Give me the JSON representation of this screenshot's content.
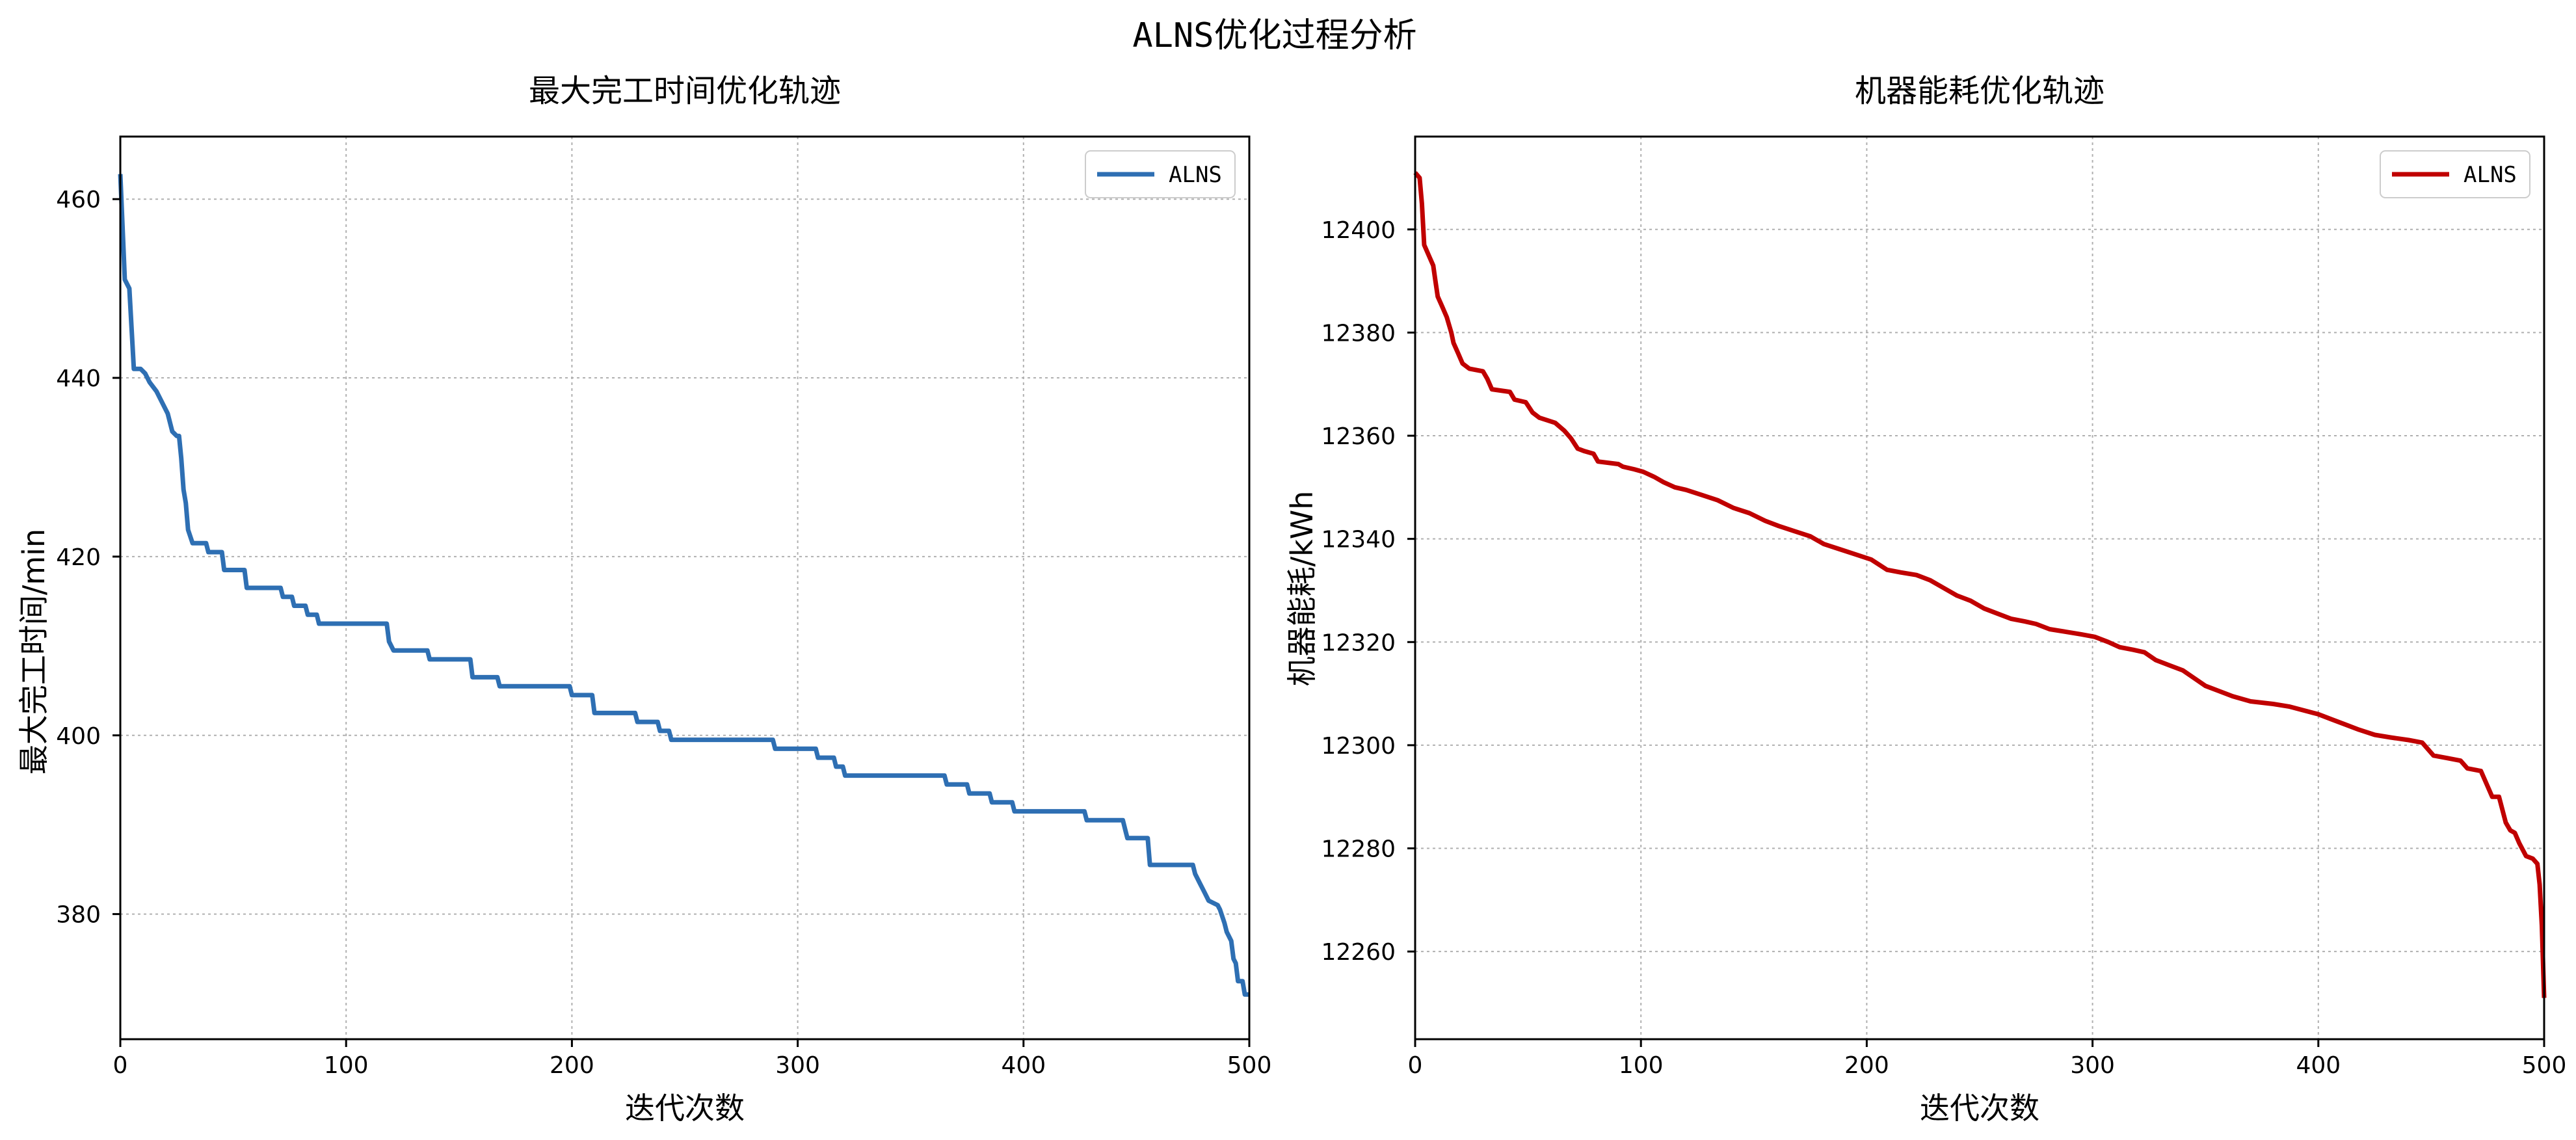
{
  "figure": {
    "title": "ALNS优化过程分析"
  },
  "chart_data": [
    {
      "type": "line",
      "title": "最大完工时间优化轨迹",
      "xlabel": "迭代次数",
      "ylabel": "最大完工时间/min",
      "xlim": [
        0,
        500
      ],
      "ylim": [
        366,
        467
      ],
      "xticks": [
        0,
        100,
        200,
        300,
        400,
        500
      ],
      "yticks": [
        380,
        400,
        420,
        440,
        460
      ],
      "grid": true,
      "legend_position": "top-right",
      "series": [
        {
          "name": "ALNS",
          "color": "#2e6fb3",
          "points": [
            [
              0,
              462.8
            ],
            [
              2,
              451
            ],
            [
              4,
              450
            ],
            [
              6,
              441
            ],
            [
              9,
              441
            ],
            [
              11,
              440.5
            ],
            [
              13,
              439.5
            ],
            [
              16,
              438.5
            ],
            [
              19,
              437
            ],
            [
              21,
              436
            ],
            [
              23,
              434
            ],
            [
              25,
              433.5
            ],
            [
              26,
              433.5
            ],
            [
              27,
              431
            ],
            [
              28,
              427.5
            ],
            [
              29,
              426
            ],
            [
              30,
              423
            ],
            [
              32,
              421.5
            ],
            [
              38,
              421.5
            ],
            [
              39,
              420.5
            ],
            [
              45,
              420.5
            ],
            [
              46,
              418.5
            ],
            [
              55,
              418.5
            ],
            [
              56,
              416.5
            ],
            [
              71,
              416.5
            ],
            [
              72,
              415.5
            ],
            [
              76,
              415.5
            ],
            [
              77,
              414.5
            ],
            [
              82,
              414.5
            ],
            [
              83,
              413.5
            ],
            [
              87,
              413.5
            ],
            [
              88,
              412.5
            ],
            [
              118,
              412.5
            ],
            [
              119,
              410.5
            ],
            [
              121,
              409.5
            ],
            [
              136,
              409.5
            ],
            [
              137,
              408.5
            ],
            [
              155,
              408.5
            ],
            [
              156,
              406.5
            ],
            [
              167,
              406.5
            ],
            [
              168,
              405.5
            ],
            [
              199,
              405.5
            ],
            [
              200,
              404.5
            ],
            [
              209,
              404.5
            ],
            [
              210,
              402.5
            ],
            [
              228,
              402.5
            ],
            [
              229,
              401.5
            ],
            [
              238,
              401.5
            ],
            [
              239,
              400.5
            ],
            [
              243,
              400.5
            ],
            [
              244,
              399.5
            ],
            [
              289,
              399.5
            ],
            [
              290,
              398.5
            ],
            [
              308,
              398.5
            ],
            [
              309,
              397.5
            ],
            [
              316,
              397.5
            ],
            [
              317,
              396.5
            ],
            [
              320,
              396.5
            ],
            [
              321,
              395.5
            ],
            [
              365,
              395.5
            ],
            [
              366,
              394.5
            ],
            [
              375,
              394.5
            ],
            [
              376,
              393.5
            ],
            [
              385,
              393.5
            ],
            [
              386,
              392.5
            ],
            [
              395,
              392.5
            ],
            [
              396,
              391.5
            ],
            [
              427,
              391.5
            ],
            [
              428,
              390.5
            ],
            [
              444,
              390.5
            ],
            [
              445,
              389.5
            ],
            [
              446,
              388.5
            ],
            [
              455,
              388.5
            ],
            [
              456,
              385.5
            ],
            [
              475,
              385.5
            ],
            [
              476,
              384.5
            ],
            [
              478,
              383.5
            ],
            [
              480,
              382.5
            ],
            [
              482,
              381.5
            ],
            [
              486,
              381
            ],
            [
              487,
              380.5
            ],
            [
              489,
              379
            ],
            [
              490,
              378
            ],
            [
              491,
              377.5
            ],
            [
              492,
              377
            ],
            [
              493,
              375
            ],
            [
              494,
              374.5
            ],
            [
              495,
              372.5
            ],
            [
              497,
              372.5
            ],
            [
              498,
              371
            ],
            [
              500,
              371
            ]
          ]
        }
      ]
    },
    {
      "type": "line",
      "title": "机器能耗优化轨迹",
      "xlabel": "迭代次数",
      "ylabel": "机器能耗/kWh",
      "xlim": [
        0,
        500
      ],
      "ylim": [
        12243,
        12418
      ],
      "xticks": [
        0,
        100,
        200,
        300,
        400,
        500
      ],
      "yticks": [
        12260,
        12280,
        12300,
        12320,
        12340,
        12360,
        12380,
        12400
      ],
      "grid": true,
      "legend_position": "top-right",
      "series": [
        {
          "name": "ALNS",
          "color": "#c00000",
          "points": [
            [
              0,
              12411
            ],
            [
              2,
              12410
            ],
            [
              3,
              12405
            ],
            [
              4,
              12397
            ],
            [
              6,
              12395
            ],
            [
              8,
              12393
            ],
            [
              9,
              12390
            ],
            [
              10,
              12387
            ],
            [
              12,
              12385
            ],
            [
              14,
              12383
            ],
            [
              16,
              12380
            ],
            [
              17,
              12378
            ],
            [
              19,
              12376
            ],
            [
              21,
              12374
            ],
            [
              24,
              12373
            ],
            [
              30,
              12372.5
            ],
            [
              32,
              12371
            ],
            [
              34,
              12369
            ],
            [
              42,
              12368.5
            ],
            [
              44,
              12367
            ],
            [
              49,
              12366.5
            ],
            [
              52,
              12364.5
            ],
            [
              55,
              12363.5
            ],
            [
              62,
              12362.5
            ],
            [
              66,
              12361
            ],
            [
              69,
              12359.5
            ],
            [
              72,
              12357.5
            ],
            [
              75,
              12357
            ],
            [
              79,
              12356.5
            ],
            [
              81,
              12355
            ],
            [
              90,
              12354.5
            ],
            [
              92,
              12354
            ],
            [
              97,
              12353.5
            ],
            [
              101,
              12353
            ],
            [
              106,
              12352
            ],
            [
              110,
              12351
            ],
            [
              115,
              12350
            ],
            [
              120,
              12349.5
            ],
            [
              127,
              12348.5
            ],
            [
              134,
              12347.5
            ],
            [
              141,
              12346
            ],
            [
              148,
              12345
            ],
            [
              155,
              12343.5
            ],
            [
              161,
              12342.5
            ],
            [
              168,
              12341.5
            ],
            [
              175,
              12340.5
            ],
            [
              181,
              12339
            ],
            [
              188,
              12338
            ],
            [
              195,
              12337
            ],
            [
              202,
              12336
            ],
            [
              209,
              12334
            ],
            [
              215,
              12333.5
            ],
            [
              222,
              12333
            ],
            [
              228,
              12332
            ],
            [
              234,
              12330.5
            ],
            [
              240,
              12329
            ],
            [
              246,
              12328
            ],
            [
              252,
              12326.5
            ],
            [
              258,
              12325.5
            ],
            [
              264,
              12324.5
            ],
            [
              270,
              12324
            ],
            [
              275,
              12323.5
            ],
            [
              281,
              12322.5
            ],
            [
              288,
              12322
            ],
            [
              295,
              12321.5
            ],
            [
              301,
              12321
            ],
            [
              307,
              12320
            ],
            [
              312,
              12319
            ],
            [
              318,
              12318.5
            ],
            [
              323,
              12318
            ],
            [
              328,
              12316.5
            ],
            [
              334,
              12315.5
            ],
            [
              340,
              12314.5
            ],
            [
              345,
              12313
            ],
            [
              350,
              12311.5
            ],
            [
              356,
              12310.5
            ],
            [
              362,
              12309.5
            ],
            [
              370,
              12308.5
            ],
            [
              380,
              12308
            ],
            [
              387,
              12307.5
            ],
            [
              400,
              12306
            ],
            [
              406,
              12305
            ],
            [
              412,
              12304
            ],
            [
              418,
              12303
            ],
            [
              425,
              12302
            ],
            [
              432,
              12301.5
            ],
            [
              440,
              12301
            ],
            [
              446,
              12300.5
            ],
            [
              451,
              12298
            ],
            [
              457,
              12297.5
            ],
            [
              463,
              12297
            ],
            [
              466,
              12295.5
            ],
            [
              472,
              12295
            ],
            [
              475,
              12292
            ],
            [
              477,
              12290
            ],
            [
              480,
              12290
            ],
            [
              483,
              12285
            ],
            [
              485,
              12283.5
            ],
            [
              487,
              12283
            ],
            [
              489,
              12281
            ],
            [
              492,
              12278.5
            ],
            [
              495,
              12278
            ],
            [
              497,
              12277
            ],
            [
              498,
              12273
            ],
            [
              499,
              12265
            ],
            [
              500,
              12251
            ]
          ]
        }
      ]
    }
  ]
}
